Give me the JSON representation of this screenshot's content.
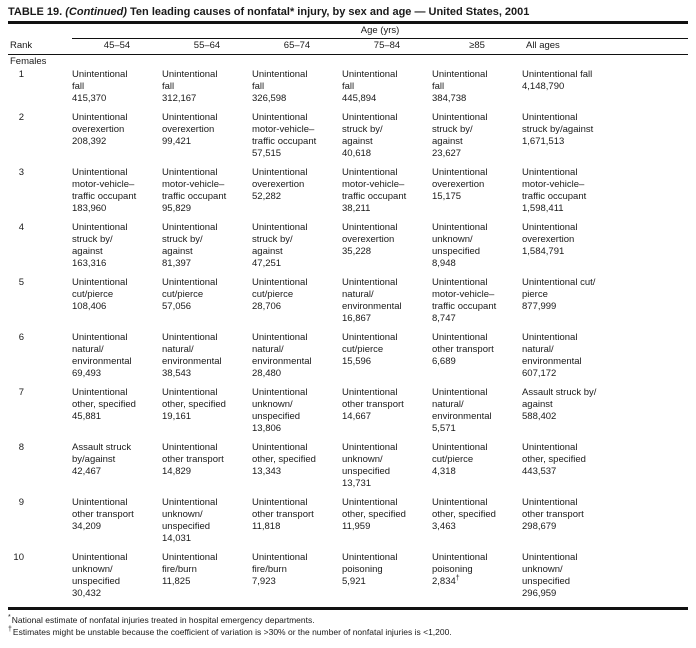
{
  "title": {
    "prefix": "TABLE 19. ",
    "continued": "(Continued)",
    "rest": " Ten leading causes of nonfatal* injury, by sex and age — United States, 2001"
  },
  "header": {
    "age_span_label": "Age (yrs)",
    "rank_label": "Rank",
    "columns": [
      "45–54",
      "55–64",
      "65–74",
      "75–84",
      "≥85",
      "All ages"
    ]
  },
  "section_label": "Females",
  "rows": [
    {
      "rank": "1",
      "cells": [
        {
          "cause": "Unintentional\nfall",
          "value": "415,370"
        },
        {
          "cause": "Unintentional\nfall",
          "value": "312,167"
        },
        {
          "cause": "Unintentional\nfall",
          "value": "326,598"
        },
        {
          "cause": "Unintentional\nfall",
          "value": "445,894"
        },
        {
          "cause": "Unintentional\nfall",
          "value": "384,738"
        },
        {
          "cause": "Unintentional fall",
          "value": "4,148,790"
        }
      ]
    },
    {
      "rank": "2",
      "cells": [
        {
          "cause": "Unintentional\noverexertion",
          "value": "208,392"
        },
        {
          "cause": "Unintentional\noverexertion",
          "value": "99,421"
        },
        {
          "cause": "Unintentional\nmotor-vehicle–\ntraffic occupant",
          "value": "57,515"
        },
        {
          "cause": "Unintentional\nstruck by/\nagainst",
          "value": "40,618"
        },
        {
          "cause": "Unintentional\nstruck by/\nagainst",
          "value": "23,627"
        },
        {
          "cause": "Unintentional\nstruck by/against",
          "value": "1,671,513"
        }
      ]
    },
    {
      "rank": "3",
      "cells": [
        {
          "cause": "Unintentional\nmotor-vehicle–\ntraffic occupant",
          "value": "183,960"
        },
        {
          "cause": "Unintentional\nmotor-vehicle–\ntraffic occupant",
          "value": "95,829"
        },
        {
          "cause": "Unintentional\noverexertion",
          "value": "52,282"
        },
        {
          "cause": "Unintentional\nmotor-vehicle–\ntraffic occupant",
          "value": "38,211"
        },
        {
          "cause": "Unintentional\noverexertion",
          "value": "15,175"
        },
        {
          "cause": "Unintentional\nmotor-vehicle–\ntraffic occupant",
          "value": "1,598,411"
        }
      ]
    },
    {
      "rank": "4",
      "cells": [
        {
          "cause": "Unintentional\nstruck by/\nagainst",
          "value": "163,316"
        },
        {
          "cause": "Unintentional\nstruck by/\nagainst",
          "value": "81,397"
        },
        {
          "cause": "Unintentional\nstruck by/\nagainst",
          "value": "47,251"
        },
        {
          "cause": "Unintentional\noverexertion",
          "value": "35,228"
        },
        {
          "cause": "Unintentional\nunknown/\nunspecified",
          "value": "8,948"
        },
        {
          "cause": "Unintentional\noverexertion",
          "value": "1,584,791"
        }
      ]
    },
    {
      "rank": "5",
      "cells": [
        {
          "cause": "Unintentional\ncut/pierce",
          "value": "108,406"
        },
        {
          "cause": "Unintentional\ncut/pierce",
          "value": "57,056"
        },
        {
          "cause": "Unintentional\ncut/pierce",
          "value": "28,706"
        },
        {
          "cause": "Unintentional\nnatural/\nenvironmental",
          "value": "16,867"
        },
        {
          "cause": "Unintentional\nmotor-vehicle–\ntraffic occupant",
          "value": "8,747"
        },
        {
          "cause": "Unintentional cut/\npierce",
          "value": "877,999"
        }
      ]
    },
    {
      "rank": "6",
      "cells": [
        {
          "cause": "Unintentional\nnatural/\nenvironmental",
          "value": "69,493"
        },
        {
          "cause": "Unintentional\nnatural/\nenvironmental",
          "value": "38,543"
        },
        {
          "cause": "Unintentional\nnatural/\nenvironmental",
          "value": "28,480"
        },
        {
          "cause": "Unintentional\ncut/pierce",
          "value": "15,596"
        },
        {
          "cause": "Unintentional\nother transport",
          "value": "6,689"
        },
        {
          "cause": "Unintentional\nnatural/\nenvironmental",
          "value": "607,172"
        }
      ]
    },
    {
      "rank": "7",
      "cells": [
        {
          "cause": "Unintentional\nother, specified",
          "value": "45,881"
        },
        {
          "cause": "Unintentional\nother, specified",
          "value": "19,161"
        },
        {
          "cause": "Unintentional\nunknown/\nunspecified",
          "value": "13,806"
        },
        {
          "cause": "Unintentional\nother transport",
          "value": "14,667"
        },
        {
          "cause": "Unintentional\nnatural/\nenvironmental",
          "value": "5,571"
        },
        {
          "cause": "Assault struck by/\nagainst",
          "value": "588,402"
        }
      ]
    },
    {
      "rank": "8",
      "cells": [
        {
          "cause": "Assault struck\nby/against",
          "value": "42,467"
        },
        {
          "cause": "Unintentional\nother transport",
          "value": "14,829"
        },
        {
          "cause": "Unintentional\nother, specified",
          "value": "13,343"
        },
        {
          "cause": "Unintentional\nunknown/\nunspecified",
          "value": "13,731"
        },
        {
          "cause": "Unintentional\ncut/pierce",
          "value": "4,318"
        },
        {
          "cause": "Unintentional\nother, specified",
          "value": "443,537"
        }
      ]
    },
    {
      "rank": "9",
      "cells": [
        {
          "cause": "Unintentional\nother transport",
          "value": "34,209"
        },
        {
          "cause": "Unintentional\nunknown/\nunspecified",
          "value": "14,031"
        },
        {
          "cause": "Unintentional\nother transport",
          "value": "11,818"
        },
        {
          "cause": "Unintentional\nother, specified",
          "value": "11,959"
        },
        {
          "cause": "Unintentional\nother, specified",
          "value": "3,463"
        },
        {
          "cause": "Unintentional\nother transport",
          "value": "298,679"
        }
      ]
    },
    {
      "rank": "10",
      "cells": [
        {
          "cause": "Unintentional\nunknown/\nunspecified",
          "value": "30,432"
        },
        {
          "cause": "Unintentional\nfire/burn",
          "value": "11,825"
        },
        {
          "cause": "Unintentional\nfire/burn",
          "value": "7,923"
        },
        {
          "cause": "Unintentional\npoisoning",
          "value": "5,921"
        },
        {
          "cause": "Unintentional\npoisoning",
          "value": "2,834",
          "value_marker": "†"
        },
        {
          "cause": "Unintentional\nunknown/\nunspecified",
          "value": "296,959"
        }
      ]
    }
  ],
  "footnotes": [
    {
      "marker": "*",
      "text": "National estimate of nonfatal injuries treated in hospital emergency departments."
    },
    {
      "marker": "†",
      "text": "Estimates might be unstable because the coefficient of variation is >30% or the number of nonfatal injuries is <1,200."
    }
  ]
}
